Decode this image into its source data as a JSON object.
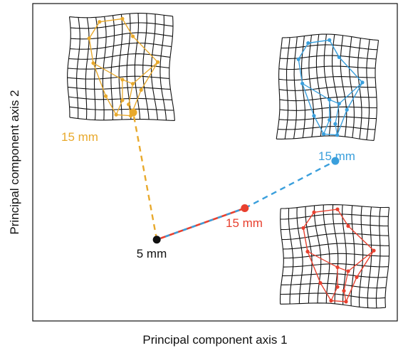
{
  "chart_data": {
    "type": "scatter",
    "title": "",
    "xlabel": "Principal component axis 1",
    "ylabel": "Principal component axis 2",
    "grid": false,
    "legend": "none",
    "origin": {
      "label": "5 mm",
      "x": 0.0,
      "y": 0.0,
      "color": "#111111"
    },
    "series": [
      {
        "label": "15 mm",
        "x": -0.19,
        "y": 0.97,
        "color": "#E8A92C"
      },
      {
        "label": "15 mm",
        "x": 0.71,
        "y": 0.24,
        "color": "#E8402F"
      },
      {
        "label": "15 mm",
        "x": 1.44,
        "y": 0.6,
        "color": "#3A9FDC"
      }
    ],
    "xlim": [
      -1.0,
      1.94
    ],
    "ylim": [
      -0.62,
      1.8
    ]
  }
}
